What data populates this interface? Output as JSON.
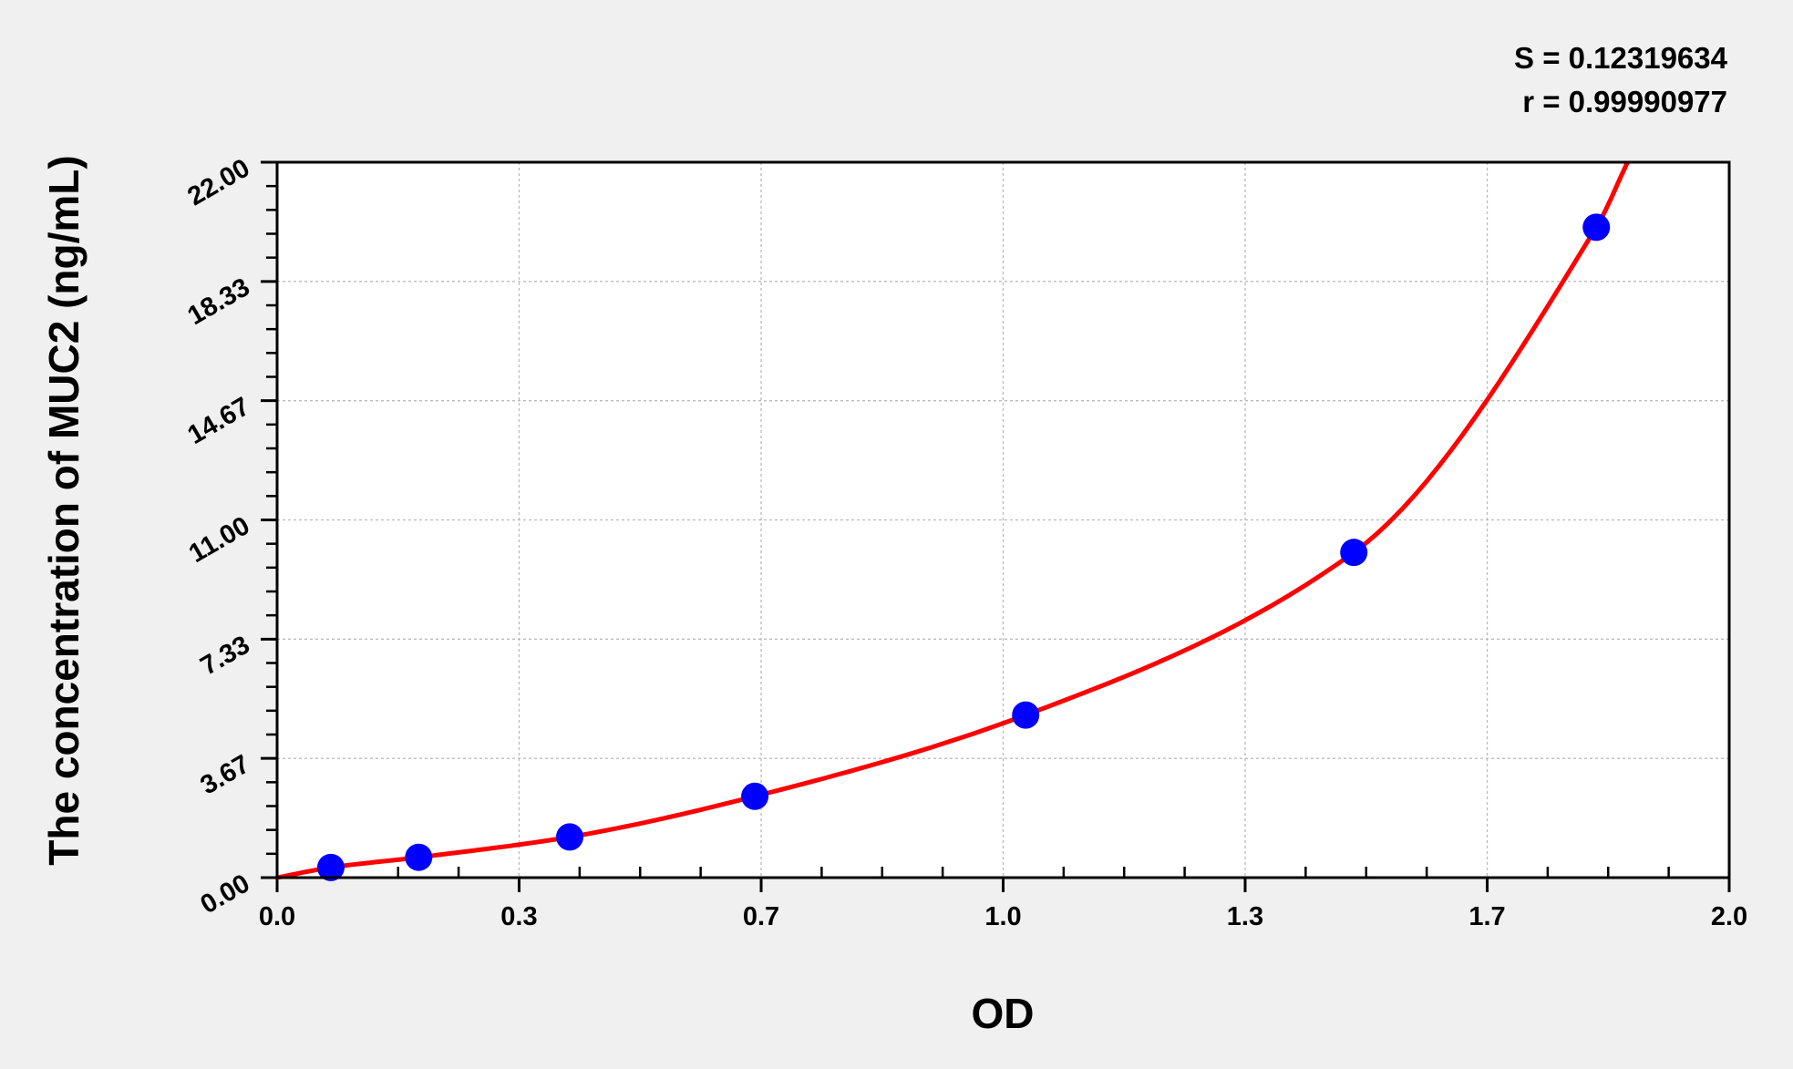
{
  "chart_data": {
    "type": "scatter",
    "xlabel": "OD",
    "ylabel": "The concentration of MUC2 (ng/mL)",
    "xlim": [
      0,
      2.0
    ],
    "ylim": [
      0,
      22.0
    ],
    "x_ticks": [
      0,
      0.3333,
      0.6667,
      1.0,
      1.3333,
      1.6667,
      2.0
    ],
    "x_tick_labels": [
      "0.0",
      "0.3",
      "0.7",
      "1.0",
      "1.3",
      "1.7",
      "2.0"
    ],
    "y_ticks": [
      0,
      3.6667,
      7.3333,
      11.0,
      14.6667,
      18.3333,
      22.0
    ],
    "y_tick_labels": [
      "0.00",
      "3.67",
      "7.33",
      "11.00",
      "14.67",
      "18.33",
      "22.00"
    ],
    "grid": true,
    "annotations": [
      "S = 0.12319634",
      "r = 0.99990977"
    ],
    "points": {
      "x": [
        0.074,
        0.195,
        0.403,
        0.658,
        1.031,
        1.483,
        1.817
      ],
      "y": [
        0.3125,
        0.625,
        1.25,
        2.5,
        5.0,
        10.0,
        20.0
      ]
    },
    "fit_curve": {
      "x": [
        0.0,
        0.074,
        0.195,
        0.403,
        0.658,
        1.031,
        1.483,
        1.817,
        1.86
      ],
      "y": [
        0.0,
        0.3125,
        0.625,
        1.25,
        2.5,
        5.0,
        10.0,
        20.0,
        22.0
      ]
    },
    "colors": {
      "points": "#0000ff",
      "curve": "#ff0000",
      "background": "#f0f0f0",
      "plot": "#ffffff"
    }
  }
}
